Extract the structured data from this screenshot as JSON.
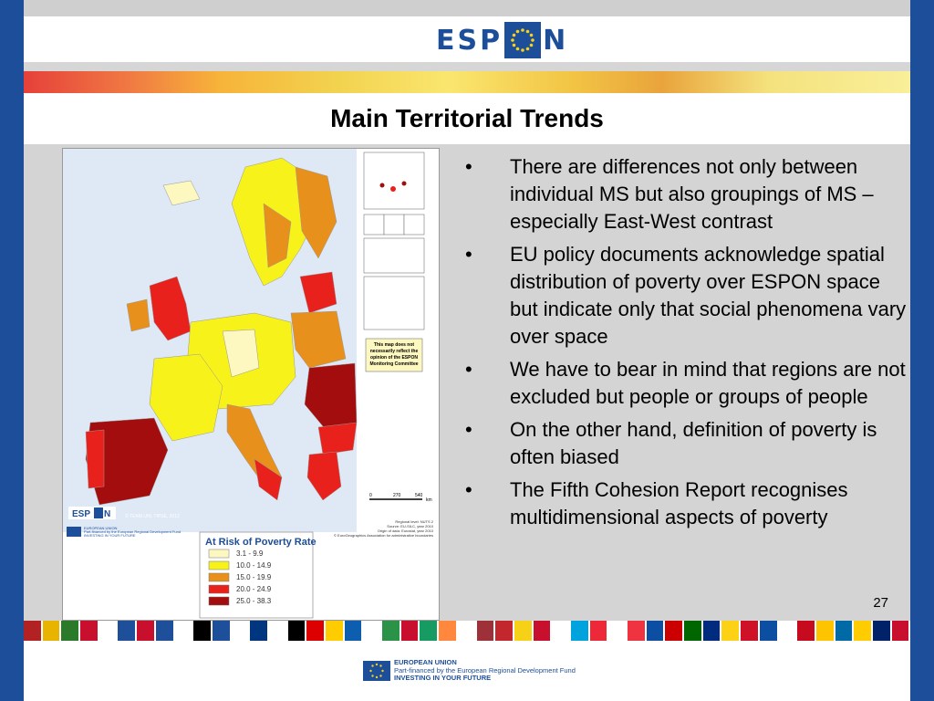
{
  "header": {
    "logo_left": "ESP",
    "logo_right": "N"
  },
  "slide": {
    "title": "Main Territorial Trends",
    "page_number": "27",
    "bullet_symbol": "•",
    "bullets": [
      "There are differences not only between individual MS but also groupings of MS – especially East-West contrast",
      "EU policy documents acknowledge spatial distribution of poverty over ESPON space but indicate only that social phenomena vary over space",
      "We have to bear in mind that regions are not excluded but people or groups of people",
      "On the other hand, definition of poverty is often biased",
      "The Fifth Cohesion Report recognises multidimensional aspects of poverty"
    ]
  },
  "map": {
    "disclaimer": [
      "This map does not",
      "necessarily reflect the",
      "opinion of the ESPON",
      "Monitoring Committee"
    ],
    "scale_labels": [
      "0",
      "270",
      "540"
    ],
    "scale_unit": "km",
    "copyright": "© TEAM UHL TIPSE, 2012",
    "logo_left": "ESP",
    "logo_right": "N",
    "legend": {
      "title": "At Risk of Poverty Rate",
      "classes": [
        {
          "label": "3.1 - 9.9",
          "color": "#fdf7c0"
        },
        {
          "label": "10.0 - 14.9",
          "color": "#f7f219"
        },
        {
          "label": "15.0 - 19.9",
          "color": "#e8901c"
        },
        {
          "label": "20.0 - 24.9",
          "color": "#e8211c"
        },
        {
          "label": "25.0 - 38.3",
          "color": "#a30d0d"
        }
      ]
    },
    "source_lines": [
      "Regional level: NUTS 2",
      "Source: EU-SILC, year 2010",
      "Origin of data: Eurostat, year 2010",
      "© EuroGeographics Association for administrative boundaries"
    ],
    "eu_note": [
      "EUROPEAN UNION",
      "Part-financed by the European Regional Development Fund",
      "INVESTING IN YOUR FUTURE"
    ]
  },
  "footer": {
    "line1": "EUROPEAN UNION",
    "line2": "Part-financed by the European Regional Development Fund",
    "line3": "INVESTING IN YOUR FUTURE"
  },
  "flags": [
    "#b22222",
    "#e8b400",
    "#2a7a2a",
    "#c8102e",
    "#ffffff",
    "#1d4f9a",
    "#c8102e",
    "#1d4f9a",
    "#ffffff",
    "#000000",
    "#1d4f9a",
    "#ffffff",
    "#003580",
    "#ffffff",
    "#000000",
    "#dd0000",
    "#ffcc00",
    "#0d5eaf",
    "#ffffff",
    "#2b9348",
    "#c8102e",
    "#169b62",
    "#ff883e",
    "#ffffff",
    "#9e3039",
    "#c1272d",
    "#f7d117",
    "#c8102e",
    "#ffffff",
    "#00a3dd",
    "#ed2939",
    "#ffffff",
    "#ef3340",
    "#0b4ea2",
    "#cc0000",
    "#006600",
    "#002b7f",
    "#fcd116",
    "#ce1126",
    "#0b4ea2",
    "#ffffff",
    "#c60b1e",
    "#ffc400",
    "#006aa7",
    "#fecc00",
    "#012169",
    "#c8102e"
  ]
}
